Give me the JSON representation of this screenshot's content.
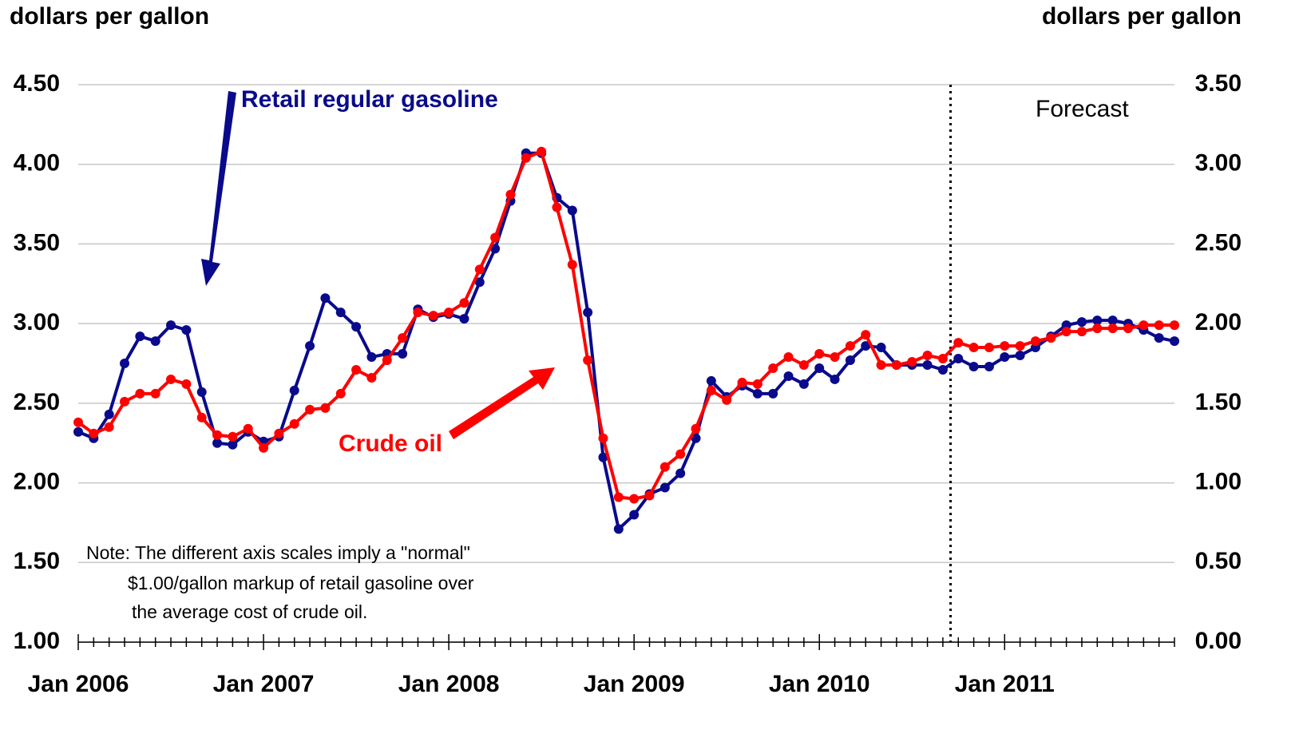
{
  "chart_data": {
    "type": "line",
    "y_axis_label": "dollars per gallon",
    "y2_axis_label": "dollars per gallon",
    "categories": [
      "Jan 2006",
      null,
      null,
      null,
      null,
      null,
      null,
      null,
      null,
      null,
      null,
      null,
      "Jan 2007",
      null,
      null,
      null,
      null,
      null,
      null,
      null,
      null,
      null,
      null,
      null,
      "Jan 2008",
      null,
      null,
      null,
      null,
      null,
      null,
      null,
      null,
      null,
      null,
      null,
      "Jan 2009",
      null,
      null,
      null,
      null,
      null,
      null,
      null,
      null,
      null,
      null,
      null,
      "Jan 2010",
      null,
      null,
      null,
      null,
      null,
      null,
      null,
      null,
      null,
      null,
      null,
      "Jan 2011",
      null,
      null,
      null,
      null,
      null,
      null,
      null,
      null,
      null,
      null,
      null
    ],
    "series": [
      {
        "name": "Retail regular gasoline",
        "color": "#0a0a8c",
        "axis": "y",
        "values": [
          2.32,
          2.28,
          2.43,
          2.75,
          2.92,
          2.89,
          2.99,
          2.96,
          2.57,
          2.25,
          2.24,
          2.32,
          2.26,
          2.29,
          2.58,
          2.86,
          3.16,
          3.07,
          2.98,
          2.79,
          2.81,
          2.81,
          3.09,
          3.04,
          3.06,
          3.03,
          3.26,
          3.47,
          3.77,
          4.07,
          4.07,
          3.79,
          3.71,
          3.07,
          2.16,
          1.71,
          1.8,
          1.93,
          1.97,
          2.06,
          2.28,
          2.64,
          2.54,
          2.61,
          2.56,
          2.56,
          2.67,
          2.62,
          2.72,
          2.65,
          2.77,
          2.86,
          2.85,
          2.74,
          2.74,
          2.74,
          2.71,
          2.78,
          2.73,
          2.73,
          2.79,
          2.8,
          2.85,
          2.92,
          2.99,
          3.01,
          3.02,
          3.02,
          3.0,
          2.96,
          2.91,
          2.89
        ]
      },
      {
        "name": "Crude oil",
        "color": "#ff0000",
        "axis": "y2",
        "values": [
          1.38,
          1.31,
          1.35,
          1.51,
          1.56,
          1.56,
          1.65,
          1.62,
          1.41,
          1.3,
          1.29,
          1.34,
          1.22,
          1.31,
          1.37,
          1.46,
          1.47,
          1.56,
          1.71,
          1.66,
          1.77,
          1.91,
          2.07,
          2.05,
          2.07,
          2.13,
          2.34,
          2.54,
          2.81,
          3.04,
          3.08,
          2.73,
          2.37,
          1.77,
          1.28,
          0.91,
          0.9,
          0.92,
          1.1,
          1.18,
          1.34,
          1.58,
          1.52,
          1.63,
          1.62,
          1.72,
          1.79,
          1.74,
          1.81,
          1.79,
          1.86,
          1.93,
          1.74,
          1.74,
          1.76,
          1.8,
          1.78,
          1.88,
          1.85,
          1.85,
          1.86,
          1.86,
          1.89,
          1.91,
          1.95,
          1.95,
          1.97,
          1.97,
          1.97,
          1.99,
          1.99,
          1.99
        ]
      }
    ],
    "ylim": [
      1.0,
      4.5
    ],
    "yticks": [
      {
        "value": 1.0,
        "label": "1.00"
      },
      {
        "value": 1.5,
        "label": "1.50"
      },
      {
        "value": 2.0,
        "label": "2.00"
      },
      {
        "value": 2.5,
        "label": "2.50"
      },
      {
        "value": 3.0,
        "label": "3.00"
      },
      {
        "value": 3.5,
        "label": "3.50"
      },
      {
        "value": 4.0,
        "label": "4.00"
      },
      {
        "value": 4.5,
        "label": "4.50"
      }
    ],
    "y2lim": [
      0.0,
      3.5
    ],
    "y2ticks": [
      {
        "value": 0.0,
        "label": "0.00"
      },
      {
        "value": 0.5,
        "label": "0.50"
      },
      {
        "value": 1.0,
        "label": "1.00"
      },
      {
        "value": 1.5,
        "label": "1.50"
      },
      {
        "value": 2.0,
        "label": "2.00"
      },
      {
        "value": 2.5,
        "label": "2.50"
      },
      {
        "value": 3.0,
        "label": "3.00"
      },
      {
        "value": 3.5,
        "label": "3.50"
      }
    ],
    "grid": true,
    "forecast_divider": {
      "x": 56.5,
      "label": "Forecast"
    },
    "note": [
      "Note: The different axis scales imply a \"normal\"",
      "$1.00/gallon markup of retail gasoline over",
      "the average cost of crude oil."
    ]
  }
}
